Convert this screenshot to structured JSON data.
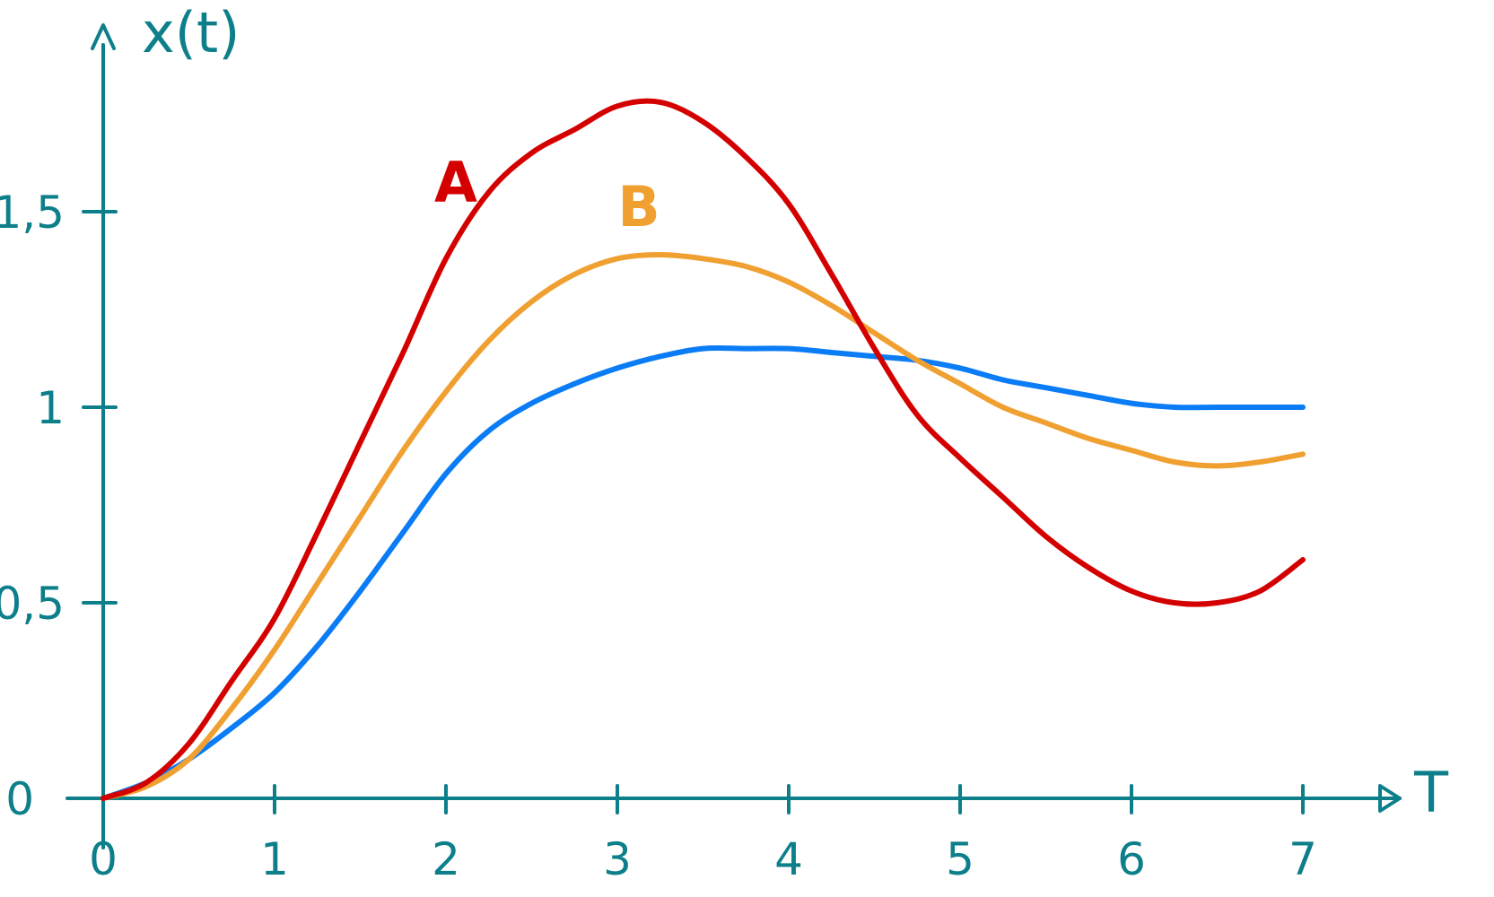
{
  "chart_data": {
    "type": "line",
    "title": "",
    "xlabel": "T",
    "ylabel": "x(t)",
    "xlim": [
      0,
      7.4
    ],
    "ylim": [
      0,
      1.85
    ],
    "x_ticks": [
      0,
      1,
      2,
      3,
      4,
      5,
      6,
      7
    ],
    "x_tick_labels": [
      "0",
      "1",
      "2",
      "3",
      "4",
      "5",
      "6",
      "7"
    ],
    "y_ticks": [
      0,
      0.5,
      1,
      1.5
    ],
    "y_tick_labels": [
      "0",
      "0,5",
      "1",
      "1,5"
    ],
    "grid": false,
    "series": [
      {
        "name": "A",
        "color": "#d40000",
        "x": [
          0,
          0.25,
          0.5,
          0.75,
          1.0,
          1.25,
          1.5,
          1.75,
          2.0,
          2.25,
          2.5,
          2.75,
          3.0,
          3.25,
          3.5,
          3.75,
          4.0,
          4.25,
          4.5,
          4.75,
          5.0,
          5.25,
          5.5,
          5.75,
          6.0,
          6.25,
          6.5,
          6.75,
          7.0
        ],
        "y": [
          0,
          0.04,
          0.14,
          0.3,
          0.46,
          0.68,
          0.91,
          1.14,
          1.38,
          1.55,
          1.65,
          1.71,
          1.77,
          1.78,
          1.73,
          1.64,
          1.52,
          1.34,
          1.15,
          0.98,
          0.87,
          0.77,
          0.67,
          0.59,
          0.53,
          0.5,
          0.5,
          0.53,
          0.61
        ]
      },
      {
        "name": "B",
        "color": "#f0a030",
        "x": [
          0,
          0.25,
          0.5,
          0.75,
          1.0,
          1.25,
          1.5,
          1.75,
          2.0,
          2.25,
          2.5,
          2.75,
          3.0,
          3.25,
          3.5,
          3.75,
          4.0,
          4.25,
          4.5,
          4.75,
          5.0,
          5.25,
          5.5,
          5.75,
          6.0,
          6.25,
          6.5,
          6.75,
          7.0
        ],
        "y": [
          0,
          0.03,
          0.1,
          0.23,
          0.38,
          0.55,
          0.72,
          0.89,
          1.04,
          1.17,
          1.27,
          1.34,
          1.38,
          1.39,
          1.38,
          1.36,
          1.32,
          1.26,
          1.19,
          1.12,
          1.06,
          1.0,
          0.96,
          0.92,
          0.89,
          0.86,
          0.85,
          0.86,
          0.88
        ]
      },
      {
        "name": "",
        "color": "#0a7cf5",
        "x": [
          0,
          0.25,
          0.5,
          0.75,
          1.0,
          1.25,
          1.5,
          1.75,
          2.0,
          2.25,
          2.5,
          2.75,
          3.0,
          3.25,
          3.5,
          3.75,
          4.0,
          4.25,
          4.5,
          4.75,
          5.0,
          5.25,
          5.5,
          5.75,
          6.0,
          6.25,
          6.5,
          6.75,
          7.0
        ],
        "y": [
          0,
          0.04,
          0.1,
          0.18,
          0.27,
          0.39,
          0.53,
          0.68,
          0.83,
          0.94,
          1.01,
          1.06,
          1.1,
          1.13,
          1.15,
          1.15,
          1.15,
          1.14,
          1.13,
          1.12,
          1.1,
          1.07,
          1.05,
          1.03,
          1.01,
          1.0,
          1.0,
          1.0,
          1.0
        ]
      }
    ]
  }
}
